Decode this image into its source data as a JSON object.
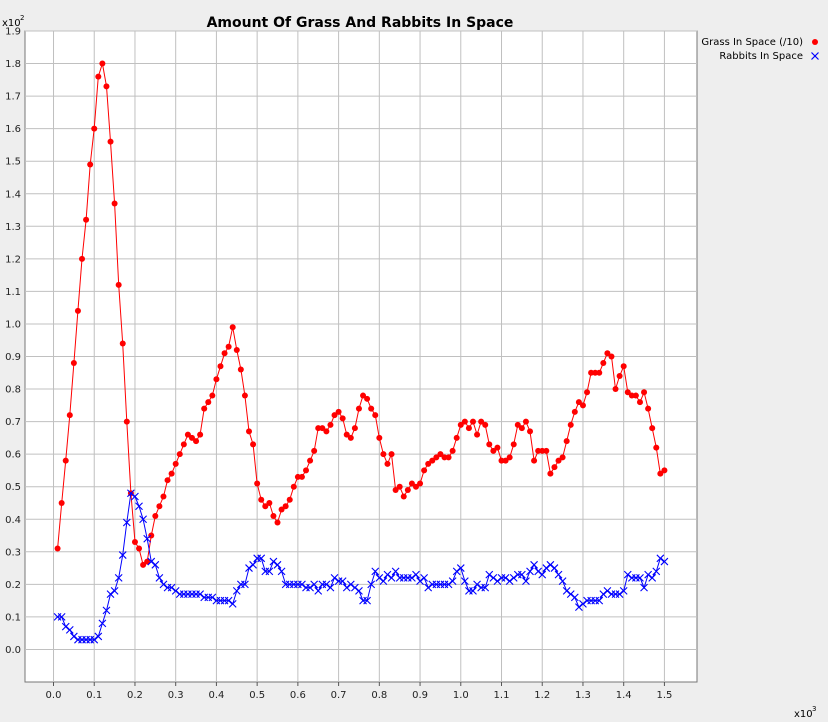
{
  "chart_data": {
    "type": "line",
    "title": "Amount Of Grass And Rabbits In Space",
    "xlabel": "",
    "ylabel": "",
    "x_multiplier": "x10",
    "x_multiplier_exp": "3",
    "y_multiplier": "x10",
    "y_multiplier_exp": "2",
    "xlim": [
      -0.07,
      1.58
    ],
    "ylim": [
      -0.1,
      1.9
    ],
    "x_ticks": [
      "0.0",
      "0.1",
      "0.2",
      "0.3",
      "0.4",
      "0.5",
      "0.6",
      "0.7",
      "0.8",
      "0.9",
      "1.0",
      "1.1",
      "1.2",
      "1.3",
      "1.4",
      "1.5"
    ],
    "y_ticks": [
      "0.0",
      "0.1",
      "0.2",
      "0.3",
      "0.4",
      "0.5",
      "0.6",
      "0.7",
      "0.8",
      "0.9",
      "1.0",
      "1.1",
      "1.2",
      "1.3",
      "1.4",
      "1.5",
      "1.6",
      "1.7",
      "1.8",
      "1.9"
    ],
    "grid": true,
    "legend_position": "top-right",
    "series": [
      {
        "name": "Grass In Space (/10)",
        "color": "#ff0000",
        "marker": "dot",
        "x": [
          0.01,
          0.02,
          0.03,
          0.04,
          0.05,
          0.06,
          0.07,
          0.08,
          0.09,
          0.1,
          0.11,
          0.12,
          0.13,
          0.14,
          0.15,
          0.16,
          0.17,
          0.18,
          0.19,
          0.2,
          0.21,
          0.22,
          0.23,
          0.24,
          0.25,
          0.26,
          0.27,
          0.28,
          0.29,
          0.3,
          0.31,
          0.32,
          0.33,
          0.34,
          0.35,
          0.36,
          0.37,
          0.38,
          0.39,
          0.4,
          0.41,
          0.42,
          0.43,
          0.44,
          0.45,
          0.46,
          0.47,
          0.48,
          0.49,
          0.5,
          0.51,
          0.52,
          0.53,
          0.54,
          0.55,
          0.56,
          0.57,
          0.58,
          0.59,
          0.6,
          0.61,
          0.62,
          0.63,
          0.64,
          0.65,
          0.66,
          0.67,
          0.68,
          0.69,
          0.7,
          0.71,
          0.72,
          0.73,
          0.74,
          0.75,
          0.76,
          0.77,
          0.78,
          0.79,
          0.8,
          0.81,
          0.82,
          0.83,
          0.84,
          0.85,
          0.86,
          0.87,
          0.88,
          0.89,
          0.9,
          0.91,
          0.92,
          0.93,
          0.94,
          0.95,
          0.96,
          0.97,
          0.98,
          0.99,
          1.0,
          1.01,
          1.02,
          1.03,
          1.04,
          1.05,
          1.06,
          1.07,
          1.08,
          1.09,
          1.1,
          1.11,
          1.12,
          1.13,
          1.14,
          1.15,
          1.16,
          1.17,
          1.18,
          1.19,
          1.2,
          1.21,
          1.22,
          1.23,
          1.24,
          1.25,
          1.26,
          1.27,
          1.28,
          1.29,
          1.3,
          1.31,
          1.32,
          1.33,
          1.34,
          1.35,
          1.36,
          1.37,
          1.38,
          1.39,
          1.4,
          1.41,
          1.42,
          1.43,
          1.44,
          1.45,
          1.46,
          1.47,
          1.48,
          1.49,
          1.5
        ],
        "y": [
          0.31,
          0.45,
          0.58,
          0.72,
          0.88,
          1.04,
          1.2,
          1.32,
          1.49,
          1.6,
          1.76,
          1.8,
          1.73,
          1.56,
          1.37,
          1.12,
          0.94,
          0.7,
          0.48,
          0.33,
          0.31,
          0.26,
          0.27,
          0.35,
          0.41,
          0.44,
          0.47,
          0.52,
          0.54,
          0.57,
          0.6,
          0.63,
          0.66,
          0.65,
          0.64,
          0.66,
          0.74,
          0.76,
          0.78,
          0.83,
          0.87,
          0.91,
          0.93,
          0.99,
          0.92,
          0.86,
          0.78,
          0.67,
          0.63,
          0.51,
          0.46,
          0.44,
          0.45,
          0.41,
          0.39,
          0.43,
          0.44,
          0.46,
          0.5,
          0.53,
          0.53,
          0.55,
          0.58,
          0.61,
          0.68,
          0.68,
          0.67,
          0.69,
          0.72,
          0.73,
          0.71,
          0.66,
          0.65,
          0.68,
          0.74,
          0.78,
          0.77,
          0.74,
          0.72,
          0.65,
          0.6,
          0.57,
          0.6,
          0.49,
          0.5,
          0.47,
          0.49,
          0.51,
          0.5,
          0.51,
          0.55,
          0.57,
          0.58,
          0.59,
          0.6,
          0.59,
          0.59,
          0.61,
          0.65,
          0.69,
          0.7,
          0.68,
          0.7,
          0.66,
          0.7,
          0.69,
          0.63,
          0.61,
          0.62,
          0.58,
          0.58,
          0.59,
          0.63,
          0.69,
          0.68,
          0.7,
          0.67,
          0.58,
          0.61,
          0.61,
          0.61,
          0.54,
          0.56,
          0.58,
          0.59,
          0.64,
          0.69,
          0.73,
          0.76,
          0.75,
          0.79,
          0.85,
          0.85,
          0.85,
          0.88,
          0.91,
          0.9,
          0.8,
          0.84,
          0.87,
          0.79,
          0.78,
          0.78,
          0.76,
          0.79,
          0.74,
          0.68,
          0.62,
          0.54,
          0.55
        ]
      },
      {
        "name": "Rabbits In Space",
        "color": "#0000ff",
        "marker": "cross",
        "x": [
          0.01,
          0.02,
          0.03,
          0.04,
          0.05,
          0.06,
          0.07,
          0.08,
          0.09,
          0.1,
          0.11,
          0.12,
          0.13,
          0.14,
          0.15,
          0.16,
          0.17,
          0.18,
          0.19,
          0.2,
          0.21,
          0.22,
          0.23,
          0.24,
          0.25,
          0.26,
          0.27,
          0.28,
          0.29,
          0.3,
          0.31,
          0.32,
          0.33,
          0.34,
          0.35,
          0.36,
          0.37,
          0.38,
          0.39,
          0.4,
          0.41,
          0.42,
          0.43,
          0.44,
          0.45,
          0.46,
          0.47,
          0.48,
          0.49,
          0.5,
          0.51,
          0.52,
          0.53,
          0.54,
          0.55,
          0.56,
          0.57,
          0.58,
          0.59,
          0.6,
          0.61,
          0.62,
          0.63,
          0.64,
          0.65,
          0.66,
          0.67,
          0.68,
          0.69,
          0.7,
          0.71,
          0.72,
          0.73,
          0.74,
          0.75,
          0.76,
          0.77,
          0.78,
          0.79,
          0.8,
          0.81,
          0.82,
          0.83,
          0.84,
          0.85,
          0.86,
          0.87,
          0.88,
          0.89,
          0.9,
          0.91,
          0.92,
          0.93,
          0.94,
          0.95,
          0.96,
          0.97,
          0.98,
          0.99,
          1.0,
          1.01,
          1.02,
          1.03,
          1.04,
          1.05,
          1.06,
          1.07,
          1.08,
          1.09,
          1.1,
          1.11,
          1.12,
          1.13,
          1.14,
          1.15,
          1.16,
          1.17,
          1.18,
          1.19,
          1.2,
          1.21,
          1.22,
          1.23,
          1.24,
          1.25,
          1.26,
          1.27,
          1.28,
          1.29,
          1.3,
          1.31,
          1.32,
          1.33,
          1.34,
          1.35,
          1.36,
          1.37,
          1.38,
          1.39,
          1.4,
          1.41,
          1.42,
          1.43,
          1.44,
          1.45,
          1.46,
          1.47,
          1.48,
          1.49,
          1.5
        ],
        "y": [
          0.1,
          0.1,
          0.07,
          0.06,
          0.04,
          0.03,
          0.03,
          0.03,
          0.03,
          0.03,
          0.04,
          0.08,
          0.12,
          0.17,
          0.18,
          0.22,
          0.29,
          0.39,
          0.48,
          0.47,
          0.44,
          0.4,
          0.34,
          0.27,
          0.26,
          0.22,
          0.2,
          0.19,
          0.19,
          0.18,
          0.17,
          0.17,
          0.17,
          0.17,
          0.17,
          0.17,
          0.16,
          0.16,
          0.16,
          0.15,
          0.15,
          0.15,
          0.15,
          0.14,
          0.18,
          0.2,
          0.2,
          0.25,
          0.26,
          0.28,
          0.28,
          0.24,
          0.24,
          0.27,
          0.26,
          0.24,
          0.2,
          0.2,
          0.2,
          0.2,
          0.2,
          0.19,
          0.19,
          0.2,
          0.18,
          0.2,
          0.2,
          0.19,
          0.22,
          0.21,
          0.21,
          0.19,
          0.2,
          0.19,
          0.18,
          0.15,
          0.15,
          0.2,
          0.24,
          0.22,
          0.21,
          0.23,
          0.22,
          0.24,
          0.22,
          0.22,
          0.22,
          0.22,
          0.23,
          0.21,
          0.22,
          0.19,
          0.2,
          0.2,
          0.2,
          0.2,
          0.2,
          0.21,
          0.24,
          0.25,
          0.21,
          0.18,
          0.18,
          0.2,
          0.19,
          0.19,
          0.23,
          0.22,
          0.21,
          0.22,
          0.22,
          0.21,
          0.22,
          0.23,
          0.23,
          0.21,
          0.24,
          0.26,
          0.24,
          0.23,
          0.25,
          0.26,
          0.25,
          0.23,
          0.21,
          0.18,
          0.17,
          0.16,
          0.13,
          0.14,
          0.15,
          0.15,
          0.15,
          0.15,
          0.17,
          0.18,
          0.17,
          0.17,
          0.17,
          0.18,
          0.23,
          0.22,
          0.22,
          0.22,
          0.19,
          0.23,
          0.22,
          0.24,
          0.28,
          0.27
        ]
      }
    ]
  }
}
